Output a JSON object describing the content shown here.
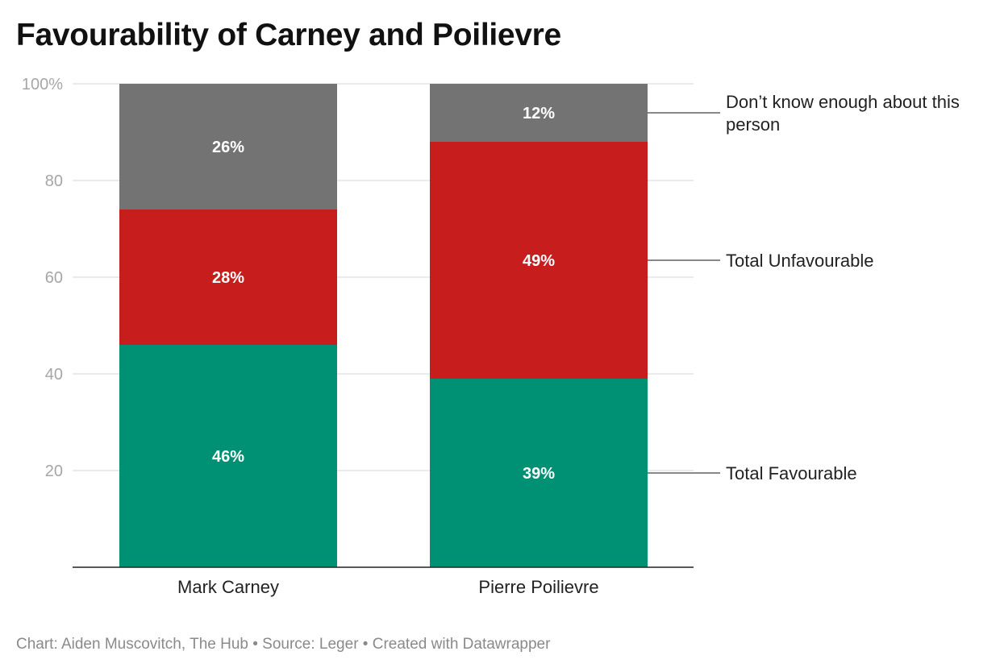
{
  "chart_data": {
    "type": "bar",
    "stacked": true,
    "title": "Favourability of Carney and Poilievre",
    "xlabel": "",
    "ylabel": "",
    "ylim": [
      0,
      100
    ],
    "yticks": [
      20,
      40,
      60,
      80,
      100
    ],
    "ytick_labels": [
      "20",
      "40",
      "60",
      "80",
      "100%"
    ],
    "grid": true,
    "legend_placement": "right (direct labels)",
    "categories": [
      "Mark Carney",
      "Pierre Poilievre"
    ],
    "series": [
      {
        "name": "Total Favourable",
        "color": "#009073",
        "values": [
          46,
          39
        ],
        "labels": [
          "46%",
          "39%"
        ]
      },
      {
        "name": "Total Unfavourable",
        "color": "#c71e1d",
        "values": [
          28,
          49
        ],
        "labels": [
          "28%",
          "49%"
        ]
      },
      {
        "name": "Don’t know enough about this person",
        "legend_lines": [
          "Don’t know enough about this",
          "person"
        ],
        "color": "#737373",
        "values": [
          26,
          12
        ],
        "labels": [
          "26%",
          "12%"
        ]
      }
    ]
  },
  "footer": "Chart: Aiden Muscovitch, The Hub • Source: Leger • Created with Datawrapper"
}
